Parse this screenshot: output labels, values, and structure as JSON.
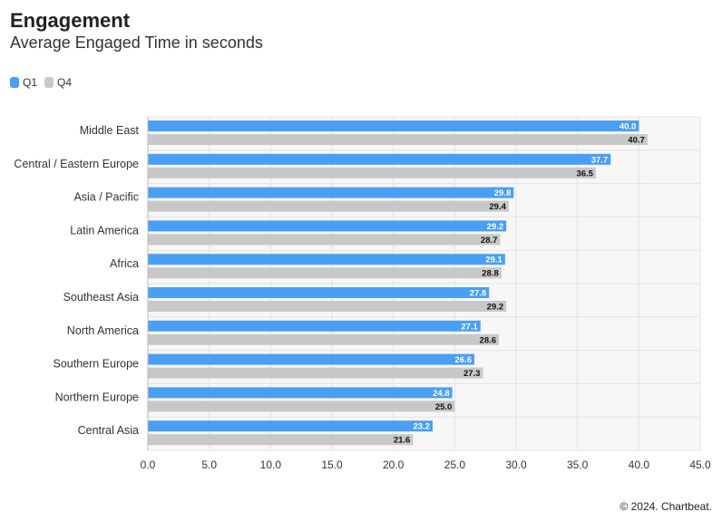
{
  "header": {
    "title": "Engagement",
    "subtitle": "Average Engaged Time in seconds"
  },
  "footer": {
    "copyright": "© 2024. Chartbeat."
  },
  "colors": {
    "q1": "#4a9ff5",
    "q4": "#c8c8c8",
    "plot_bg": "#f7f7f7",
    "grid": "#e3e3e3"
  },
  "chart_data": {
    "type": "bar",
    "orientation": "horizontal",
    "categories": [
      "Middle East",
      "Central / Eastern Europe",
      "Asia / Pacific",
      "Latin America",
      "Africa",
      "Southeast Asia",
      "North America",
      "Southern Europe",
      "Northern Europe",
      "Central Asia"
    ],
    "series": [
      {
        "name": "Q1",
        "values": [
          40.0,
          37.7,
          29.8,
          29.2,
          29.1,
          27.8,
          27.1,
          26.6,
          24.8,
          23.2
        ]
      },
      {
        "name": "Q4",
        "values": [
          40.7,
          36.5,
          29.4,
          28.7,
          28.8,
          29.2,
          28.6,
          27.3,
          25.0,
          21.6
        ]
      }
    ],
    "xlim": [
      0,
      45
    ],
    "xticks": [
      "0.0",
      "5.0",
      "10.0",
      "15.0",
      "20.0",
      "25.0",
      "30.0",
      "35.0",
      "40.0",
      "45.0"
    ],
    "legend_position": "top-left",
    "grid": true
  }
}
